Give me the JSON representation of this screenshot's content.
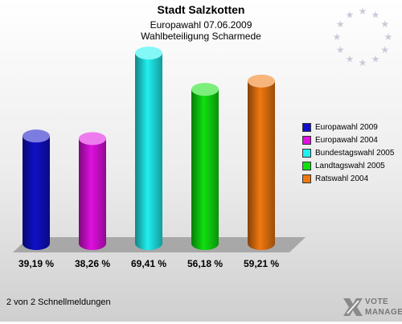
{
  "header": {
    "title": "Stadt Salzkotten",
    "subtitle1": "Europawahl 07.06.2009",
    "subtitle2": "Wahlbeteiligung Scharmede"
  },
  "chart_data": {
    "type": "bar",
    "categories": [
      "Europawahl 2009",
      "Europawahl 2004",
      "Bundestagswahl 2005",
      "Landtagswahl 2005",
      "Ratswahl 2004"
    ],
    "values": [
      39.19,
      38.26,
      69.41,
      56.18,
      59.21
    ],
    "value_labels": [
      "39,19 %",
      "38,26 %",
      "69,41 %",
      "56,18 %",
      "59,21 %"
    ],
    "colors": [
      "#1010c8",
      "#e010e0",
      "#20f0f0",
      "#10e010",
      "#f07810"
    ],
    "legend_position": "right",
    "ylim": [
      0,
      80
    ]
  },
  "footer": {
    "text": "2 von 2 Schnellmeldungen"
  },
  "logo": {
    "line1": "VOTE",
    "line2": "MANAGER",
    "icon": "vote-manager-x-icon"
  },
  "decor": {
    "stars_icon": "eu-stars-icon"
  }
}
